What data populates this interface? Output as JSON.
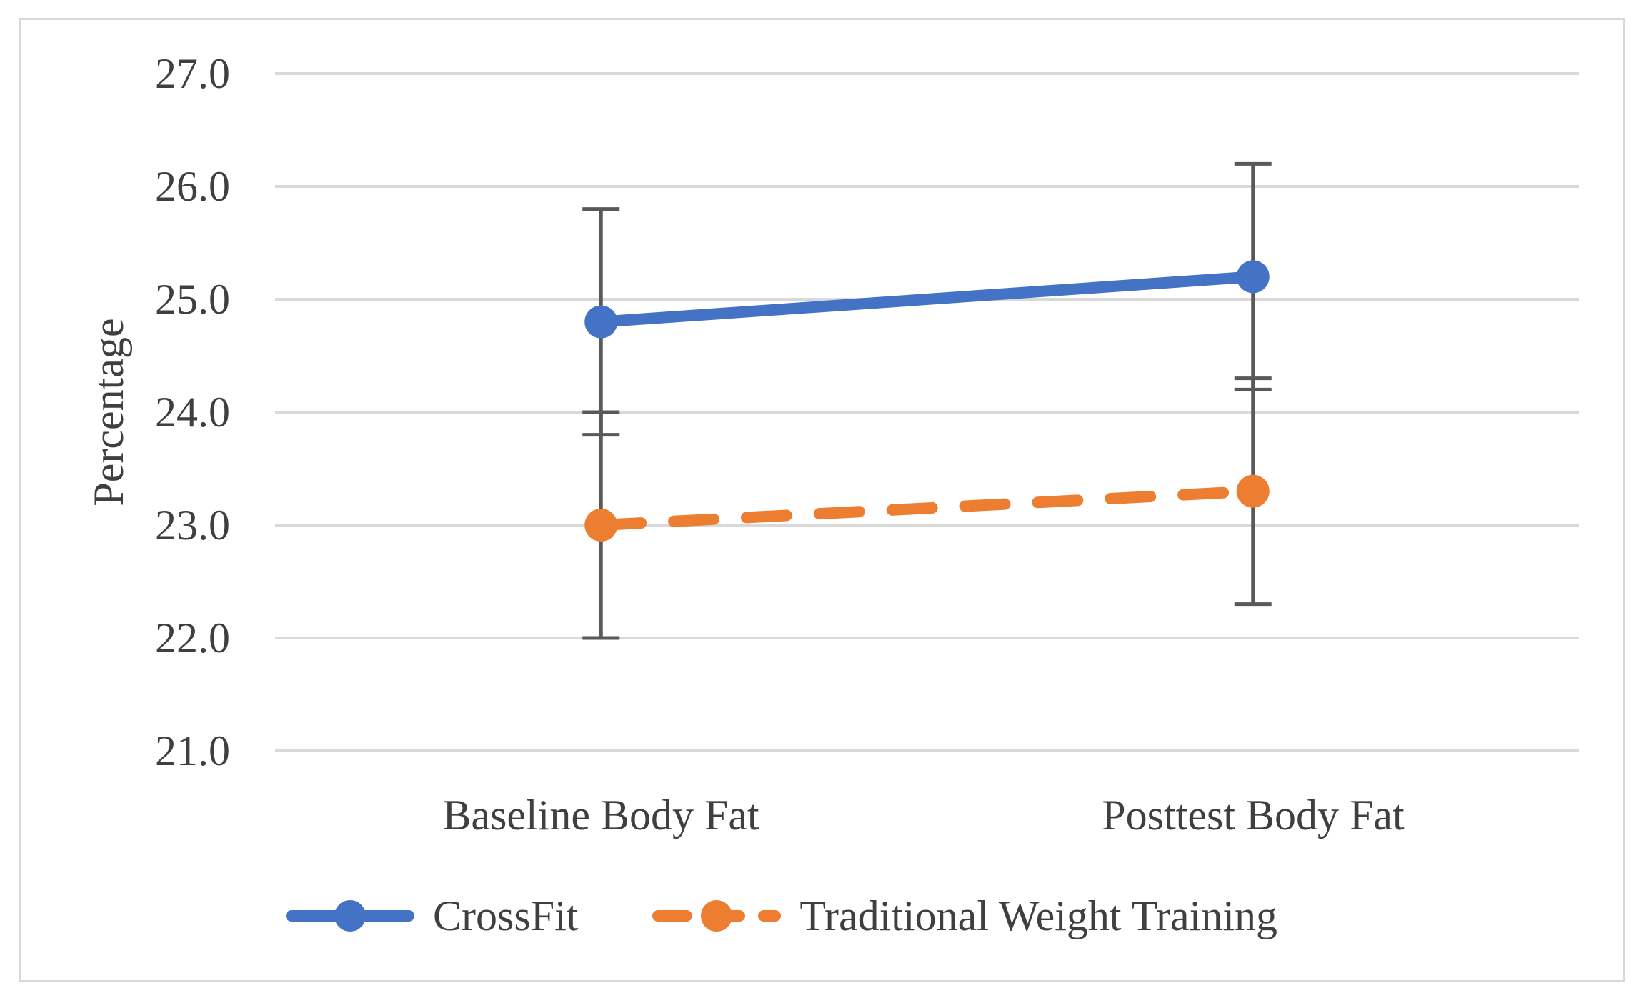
{
  "figure": {
    "background_color": "#ffffff",
    "border_color": "#d9d9d9"
  },
  "chart_data": {
    "type": "line",
    "title": "",
    "xlabel": "",
    "ylabel": "Percentage",
    "categories": [
      "Baseline Body Fat",
      "Posttest Body Fat"
    ],
    "series": [
      {
        "name": "CrossFit",
        "values": [
          24.8,
          25.2
        ],
        "error_low": [
          23.8,
          24.2
        ],
        "error_high": [
          25.8,
          26.2
        ],
        "color": "#4472C4",
        "line_style": "solid"
      },
      {
        "name": "Traditional Weight Training",
        "values": [
          23.0,
          23.3
        ],
        "error_low": [
          22.0,
          22.3
        ],
        "error_high": [
          24.0,
          24.3
        ],
        "color": "#ED7D31",
        "line_style": "dashed"
      }
    ],
    "ylim": [
      21.0,
      27.0
    ],
    "ytick_step": 1.0,
    "ytick_labels": [
      "27.0",
      "26.0",
      "25.0",
      "24.0",
      "23.0",
      "22.0",
      "21.0"
    ],
    "grid": true,
    "gridline_color": "#d9d9d9",
    "errorbar_color": "#595959",
    "text_color": "#3f3f3f",
    "legend_position": "bottom"
  }
}
